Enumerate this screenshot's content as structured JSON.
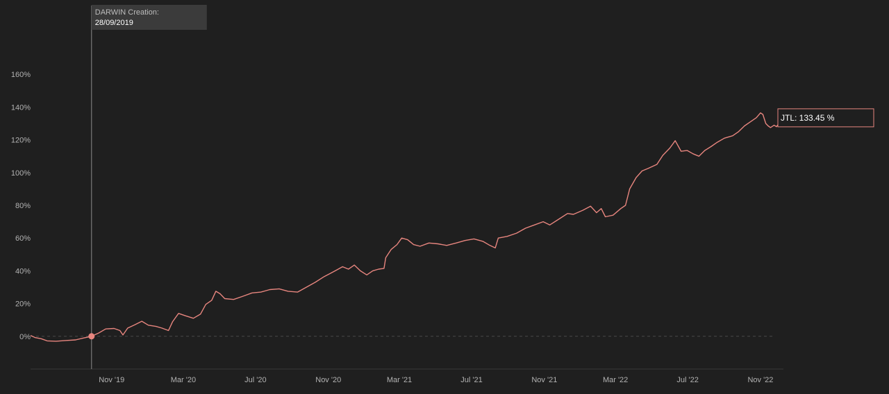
{
  "colors": {
    "background": "#1f1f1f",
    "line": "#e8867f",
    "axis_text": "#b3b3b3",
    "axis_line": "#3a3a3a",
    "zero_line": "#4a4a4a",
    "marker_line": "#8a8a8a",
    "marker_label_bg": "#3b3b3b",
    "marker_label_title": "#bdbdbd",
    "marker_label_date": "#ffffff"
  },
  "marker": {
    "title": "DARWIN Creation:",
    "date": "28/09/2019",
    "x": "2019-09-28"
  },
  "end_label": {
    "series": "JTL",
    "value": 133.45,
    "text": "JTL: 133.45 %"
  },
  "chart_data": {
    "type": "line",
    "title": "",
    "xlabel": "",
    "ylabel": "",
    "x_type": "date",
    "xlim": [
      "2019-06-17",
      "2022-11-21"
    ],
    "ylim": [
      -20,
      180
    ],
    "y_ticks": [
      0,
      20,
      40,
      60,
      80,
      100,
      120,
      140,
      160
    ],
    "y_tick_labels": [
      "0%",
      "20%",
      "40%",
      "60%",
      "80%",
      "100%",
      "120%",
      "140%",
      "160%"
    ],
    "x_ticks": [
      "2019-11-01",
      "2020-03-01",
      "2020-07-01",
      "2020-11-01",
      "2021-03-01",
      "2021-07-01",
      "2021-11-01",
      "2022-03-01",
      "2022-07-01",
      "2022-11-01"
    ],
    "x_tick_labels": [
      "Nov '19",
      "Mar '20",
      "Jul '20",
      "Nov '20",
      "Mar '21",
      "Jul '21",
      "Nov '21",
      "Mar '22",
      "Jul '22",
      "Nov '22"
    ],
    "grid": false,
    "legend": "none",
    "series": [
      {
        "name": "JTL",
        "points": [
          [
            "2019-06-17",
            0.5
          ],
          [
            "2019-06-25",
            -0.8
          ],
          [
            "2019-07-05",
            -1.5
          ],
          [
            "2019-07-15",
            -2.8
          ],
          [
            "2019-07-30",
            -3.0
          ],
          [
            "2019-08-15",
            -2.6
          ],
          [
            "2019-09-01",
            -2.2
          ],
          [
            "2019-09-15",
            -1.0
          ],
          [
            "2019-09-28",
            0.0
          ],
          [
            "2019-10-10",
            2.0
          ],
          [
            "2019-10-22",
            4.5
          ],
          [
            "2019-11-05",
            4.8
          ],
          [
            "2019-11-15",
            3.5
          ],
          [
            "2019-11-20",
            0.8
          ],
          [
            "2019-11-28",
            5.0
          ],
          [
            "2019-12-10",
            7.0
          ],
          [
            "2019-12-22",
            9.2
          ],
          [
            "2020-01-02",
            6.8
          ],
          [
            "2020-01-15",
            6.0
          ],
          [
            "2020-01-25",
            5.0
          ],
          [
            "2020-02-05",
            3.5
          ],
          [
            "2020-02-12",
            9.0
          ],
          [
            "2020-02-22",
            14.0
          ],
          [
            "2020-03-05",
            12.5
          ],
          [
            "2020-03-18",
            11.0
          ],
          [
            "2020-03-30",
            13.5
          ],
          [
            "2020-04-08",
            19.5
          ],
          [
            "2020-04-18",
            22.0
          ],
          [
            "2020-04-25",
            27.5
          ],
          [
            "2020-05-02",
            26.0
          ],
          [
            "2020-05-10",
            23.0
          ],
          [
            "2020-05-25",
            22.5
          ],
          [
            "2020-06-10",
            24.5
          ],
          [
            "2020-06-25",
            26.5
          ],
          [
            "2020-07-10",
            27.0
          ],
          [
            "2020-07-25",
            28.5
          ],
          [
            "2020-08-10",
            29.0
          ],
          [
            "2020-08-25",
            27.5
          ],
          [
            "2020-09-10",
            27.0
          ],
          [
            "2020-09-25",
            30.0
          ],
          [
            "2020-10-10",
            33.0
          ],
          [
            "2020-10-25",
            36.5
          ],
          [
            "2020-11-05",
            38.5
          ],
          [
            "2020-11-15",
            40.5
          ],
          [
            "2020-11-25",
            42.5
          ],
          [
            "2020-12-05",
            41.0
          ],
          [
            "2020-12-15",
            43.5
          ],
          [
            "2020-12-25",
            40.0
          ],
          [
            "2021-01-05",
            37.5
          ],
          [
            "2021-01-15",
            40.0
          ],
          [
            "2021-01-25",
            41.0
          ],
          [
            "2021-02-03",
            41.5
          ],
          [
            "2021-02-06",
            48.0
          ],
          [
            "2021-02-15",
            53.0
          ],
          [
            "2021-02-25",
            56.0
          ],
          [
            "2021-03-05",
            60.0
          ],
          [
            "2021-03-15",
            59.0
          ],
          [
            "2021-03-25",
            56.0
          ],
          [
            "2021-04-05",
            55.0
          ],
          [
            "2021-04-20",
            57.0
          ],
          [
            "2021-05-05",
            56.5
          ],
          [
            "2021-05-20",
            55.5
          ],
          [
            "2021-06-05",
            57.0
          ],
          [
            "2021-06-20",
            58.5
          ],
          [
            "2021-07-05",
            59.5
          ],
          [
            "2021-07-20",
            58.0
          ],
          [
            "2021-08-01",
            55.5
          ],
          [
            "2021-08-10",
            54.0
          ],
          [
            "2021-08-15",
            60.0
          ],
          [
            "2021-08-30",
            61.0
          ],
          [
            "2021-09-15",
            63.0
          ],
          [
            "2021-09-30",
            66.0
          ],
          [
            "2021-10-15",
            68.0
          ],
          [
            "2021-10-30",
            70.0
          ],
          [
            "2021-11-10",
            68.0
          ],
          [
            "2021-11-25",
            71.5
          ],
          [
            "2021-12-10",
            75.0
          ],
          [
            "2021-12-20",
            74.5
          ],
          [
            "2022-01-05",
            77.0
          ],
          [
            "2022-01-18",
            79.5
          ],
          [
            "2022-01-28",
            75.5
          ],
          [
            "2022-02-05",
            78.0
          ],
          [
            "2022-02-12",
            73.0
          ],
          [
            "2022-02-25",
            74.0
          ],
          [
            "2022-03-10",
            78.0
          ],
          [
            "2022-03-18",
            80.0
          ],
          [
            "2022-03-25",
            90.0
          ],
          [
            "2022-04-05",
            97.0
          ],
          [
            "2022-04-15",
            101.0
          ],
          [
            "2022-04-25",
            102.5
          ],
          [
            "2022-05-10",
            105.0
          ],
          [
            "2022-05-20",
            110.5
          ],
          [
            "2022-06-01",
            115.0
          ],
          [
            "2022-06-10",
            119.5
          ],
          [
            "2022-06-20",
            113.0
          ],
          [
            "2022-06-30",
            113.5
          ],
          [
            "2022-07-10",
            111.5
          ],
          [
            "2022-07-20",
            110.0
          ],
          [
            "2022-07-30",
            113.5
          ],
          [
            "2022-08-10",
            116.0
          ],
          [
            "2022-08-20",
            118.5
          ],
          [
            "2022-09-01",
            121.0
          ],
          [
            "2022-09-15",
            122.5
          ],
          [
            "2022-09-25",
            125.0
          ],
          [
            "2022-10-05",
            128.5
          ],
          [
            "2022-10-15",
            131.0
          ],
          [
            "2022-10-25",
            133.5
          ],
          [
            "2022-11-01",
            136.5
          ],
          [
            "2022-11-05",
            135.5
          ],
          [
            "2022-11-10",
            130.0
          ],
          [
            "2022-11-14",
            128.5
          ],
          [
            "2022-11-18",
            127.5
          ],
          [
            "2022-11-24",
            129.0
          ],
          [
            "2022-11-28",
            128.0
          ],
          [
            "2022-12-05",
            131.5
          ],
          [
            "2022-12-10",
            133.45
          ]
        ]
      }
    ]
  }
}
